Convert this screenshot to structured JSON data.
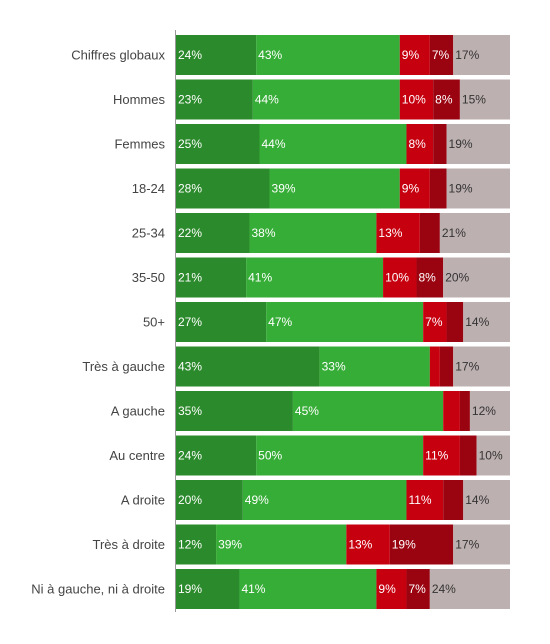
{
  "chart_data": {
    "type": "bar",
    "orientation": "horizontal",
    "stacked": true,
    "normalized_to": 100,
    "categories": [
      "Chiffres globaux",
      "Hommes",
      "Femmes",
      "18-24",
      "25-34",
      "35-50",
      "50+",
      "Très à gauche",
      "A gauche",
      "Au centre",
      "A droite",
      "Très à droite",
      "Ni à gauche, ni à droite"
    ],
    "series": [
      {
        "color": "#2b8a2b",
        "label_color": "#ffffff",
        "values": [
          24,
          23,
          25,
          28,
          22,
          21,
          27,
          43,
          35,
          24,
          20,
          12,
          19
        ]
      },
      {
        "color": "#36ad36",
        "label_color": "#ffffff",
        "values": [
          43,
          44,
          44,
          39,
          38,
          41,
          47,
          33,
          45,
          50,
          49,
          39,
          41
        ]
      },
      {
        "color": "#c7000f",
        "label_color": "#ffffff",
        "values": [
          9,
          10,
          8,
          9,
          13,
          10,
          7,
          3,
          5,
          11,
          11,
          13,
          9
        ]
      },
      {
        "color": "#9a0410",
        "label_color": "#ffffff",
        "values": [
          7,
          8,
          4,
          5,
          6,
          8,
          5,
          4,
          3,
          5,
          6,
          19,
          7
        ]
      },
      {
        "color": "#bdb0b0",
        "label_color": "#333333",
        "values": [
          17,
          15,
          19,
          19,
          21,
          20,
          14,
          17,
          12,
          10,
          14,
          17,
          24
        ]
      }
    ],
    "shown_labels": [
      [
        "24%",
        "43%",
        "9%",
        "7%",
        "17%"
      ],
      [
        "23%",
        "44%",
        "10%",
        "8%",
        "15%"
      ],
      [
        "25%",
        "44%",
        "8%",
        "",
        "19%"
      ],
      [
        "28%",
        "39%",
        "9%",
        "",
        "19%"
      ],
      [
        "22%",
        "38%",
        "13%",
        "",
        "21%"
      ],
      [
        "21%",
        "41%",
        "10%",
        "8%",
        "20%"
      ],
      [
        "27%",
        "47%",
        "7%",
        "",
        "14%"
      ],
      [
        "43%",
        "33%",
        "",
        "",
        "17%"
      ],
      [
        "35%",
        "45%",
        "",
        "",
        "12%"
      ],
      [
        "24%",
        "50%",
        "11%",
        "",
        "10%"
      ],
      [
        "20%",
        "49%",
        "11%",
        "",
        "14%"
      ],
      [
        "12%",
        "39%",
        "13%",
        "19%",
        "17%"
      ],
      [
        "19%",
        "41%",
        "9%",
        "7%",
        "24%"
      ]
    ],
    "xlim": [
      0,
      100
    ],
    "legend": "none",
    "grid": false
  }
}
